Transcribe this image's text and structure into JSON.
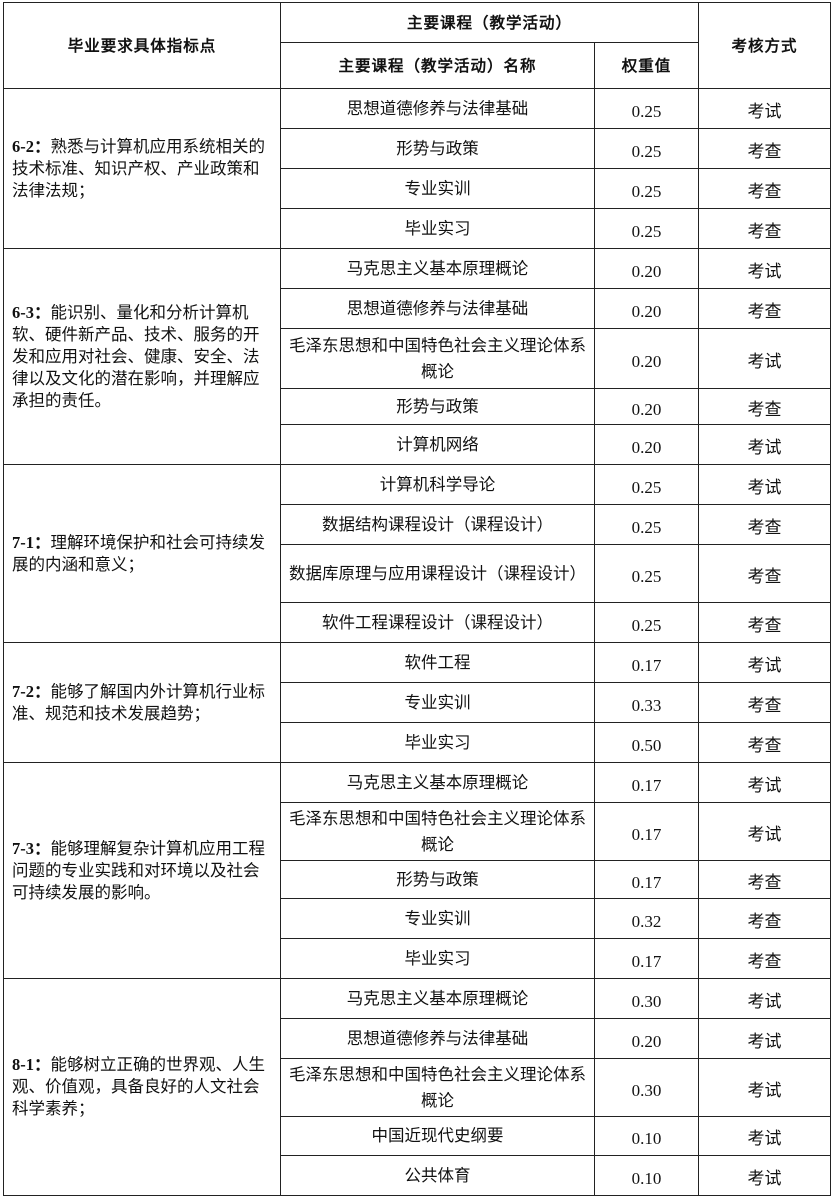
{
  "header": {
    "requirement": "毕业要求具体指标点",
    "courses_group": "主要课程（教学活动）",
    "course_name": "主要课程（教学活动）名称",
    "weight": "权重值",
    "assessment": "考核方式"
  },
  "groups": [
    {
      "code": "6-2：",
      "text": "熟悉与计算机应用系统相关的技术标准、知识产权、产业政策和法律法规；",
      "rows": [
        {
          "course": "思想道德修养与法律基础",
          "weight": "0.25",
          "method": "考试"
        },
        {
          "course": "形势与政策",
          "weight": "0.25",
          "method": "考查"
        },
        {
          "course": "专业实训",
          "weight": "0.25",
          "method": "考查"
        },
        {
          "course": "毕业实习",
          "weight": "0.25",
          "method": "考查"
        }
      ]
    },
    {
      "code": "6-3：",
      "text": "能识别、量化和分析计算机软、硬件新产品、技术、服务的开发和应用对社会、健康、安全、法律以及文化的潜在影响，并理解应承担的责任。",
      "rows": [
        {
          "course": "马克思主义基本原理概论",
          "weight": "0.20",
          "method": "考试"
        },
        {
          "course": "思想道德修养与法律基础",
          "weight": "0.20",
          "method": "考查"
        },
        {
          "course": "毛泽东思想和中国特色社会主义理论体系概论",
          "weight": "0.20",
          "method": "考试"
        },
        {
          "course": "形势与政策",
          "weight": "0.20",
          "method": "考查"
        },
        {
          "course": "计算机网络",
          "weight": "0.20",
          "method": "考试"
        }
      ]
    },
    {
      "code": "7-1：",
      "text": "理解环境保护和社会可持续发展的内涵和意义；",
      "rows": [
        {
          "course": "计算机科学导论",
          "weight": "0.25",
          "method": "考试"
        },
        {
          "course": "数据结构课程设计（课程设计）",
          "weight": "0.25",
          "method": "考查"
        },
        {
          "course": "数据库原理与应用课程设计（课程设计）",
          "weight": "0.25",
          "method": "考查"
        },
        {
          "course": "软件工程课程设计（课程设计）",
          "weight": "0.25",
          "method": "考查"
        }
      ]
    },
    {
      "code": "7-2：",
      "text": "能够了解国内外计算机行业标准、规范和技术发展趋势；",
      "rows": [
        {
          "course": "软件工程",
          "weight": "0.17",
          "method": "考试"
        },
        {
          "course": "专业实训",
          "weight": "0.33",
          "method": "考查"
        },
        {
          "course": "毕业实习",
          "weight": "0.50",
          "method": "考查"
        }
      ]
    },
    {
      "code": "7-3：",
      "text": "能够理解复杂计算机应用工程问题的专业实践和对环境以及社会可持续发展的影响。",
      "rows": [
        {
          "course": "马克思主义基本原理概论",
          "weight": "0.17",
          "method": "考试"
        },
        {
          "course": "毛泽东思想和中国特色社会主义理论体系概论",
          "weight": "0.17",
          "method": "考试"
        },
        {
          "course": "形势与政策",
          "weight": "0.17",
          "method": "考查"
        },
        {
          "course": "专业实训",
          "weight": "0.32",
          "method": "考查"
        },
        {
          "course": "毕业实习",
          "weight": "0.17",
          "method": "考查"
        }
      ]
    },
    {
      "code": "8-1：",
      "text": "能够树立正确的世界观、人生观、价值观，具备良好的人文社会科学素养；",
      "rows": [
        {
          "course": "马克思主义基本原理概论",
          "weight": "0.30",
          "method": "考试"
        },
        {
          "course": "思想道德修养与法律基础",
          "weight": "0.20",
          "method": "考试"
        },
        {
          "course": "毛泽东思想和中国特色社会主义理论体系概论",
          "weight": "0.30",
          "method": "考试"
        },
        {
          "course": "中国近现代史纲要",
          "weight": "0.10",
          "method": "考试"
        },
        {
          "course": "公共体育",
          "weight": "0.10",
          "method": "考试"
        }
      ]
    }
  ]
}
